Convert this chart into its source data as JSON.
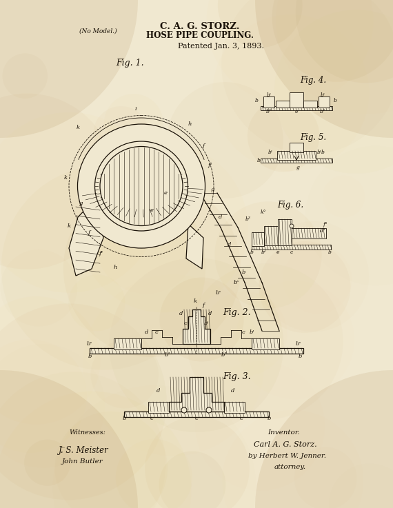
{
  "title_line1": "C. A. G. STORZ.",
  "title_line2": "HOSE PIPE COUPLING.",
  "patent_date": "Patented Jan. 3, 1893.",
  "no_model": "(No Model.)",
  "fig1_label": "Fig. 1.",
  "fig2_label": "Fig. 2.",
  "fig3_label": "Fig. 3.",
  "fig4_label": "Fig. 4.",
  "fig5_label": "Fig. 5.",
  "fig6_label": "Fig. 6.",
  "witnesses_label": "Witnesses:",
  "inventor_label": "Inventor.",
  "inventor_name": "Carl A. G. Storz.",
  "attorney_by": "by Herbert W. Jenner.",
  "attorney_label": "attorney.",
  "witness1": "J. S. Meister",
  "witness2": "John Butler",
  "paper_color": "#f0e8d0",
  "ink_color": "#1a1208",
  "fig_width": 5.7,
  "fig_height": 7.37,
  "dpi": 100
}
